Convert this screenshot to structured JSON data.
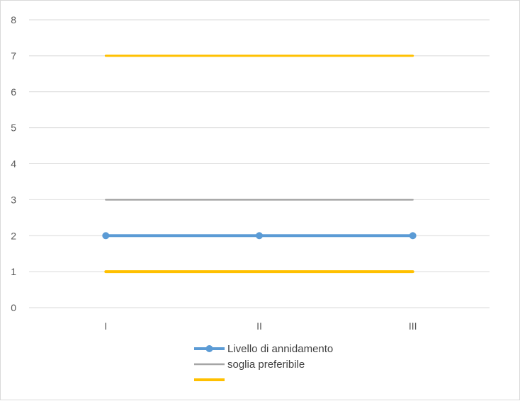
{
  "chart_data": {
    "type": "line",
    "categories": [
      "I",
      "II",
      "III"
    ],
    "ylim": [
      0,
      8
    ],
    "yticks": [
      0,
      1,
      2,
      3,
      4,
      5,
      6,
      7,
      8
    ],
    "grid": true,
    "legend": "bottom",
    "series": [
      {
        "name": "Livello di annidamento",
        "values": [
          2,
          2,
          2
        ],
        "color": "#5b9bd5",
        "markers": true
      },
      {
        "name": "soglia preferibile",
        "values": [
          3,
          3,
          3
        ],
        "color": "#a5a5a5",
        "markers": false
      },
      {
        "name": "",
        "values": [
          1,
          1,
          1
        ],
        "color": "#ffc000",
        "markers": false
      },
      {
        "name": "",
        "values": [
          7,
          7,
          7
        ],
        "color": "#ffc000",
        "markers": false
      }
    ]
  }
}
